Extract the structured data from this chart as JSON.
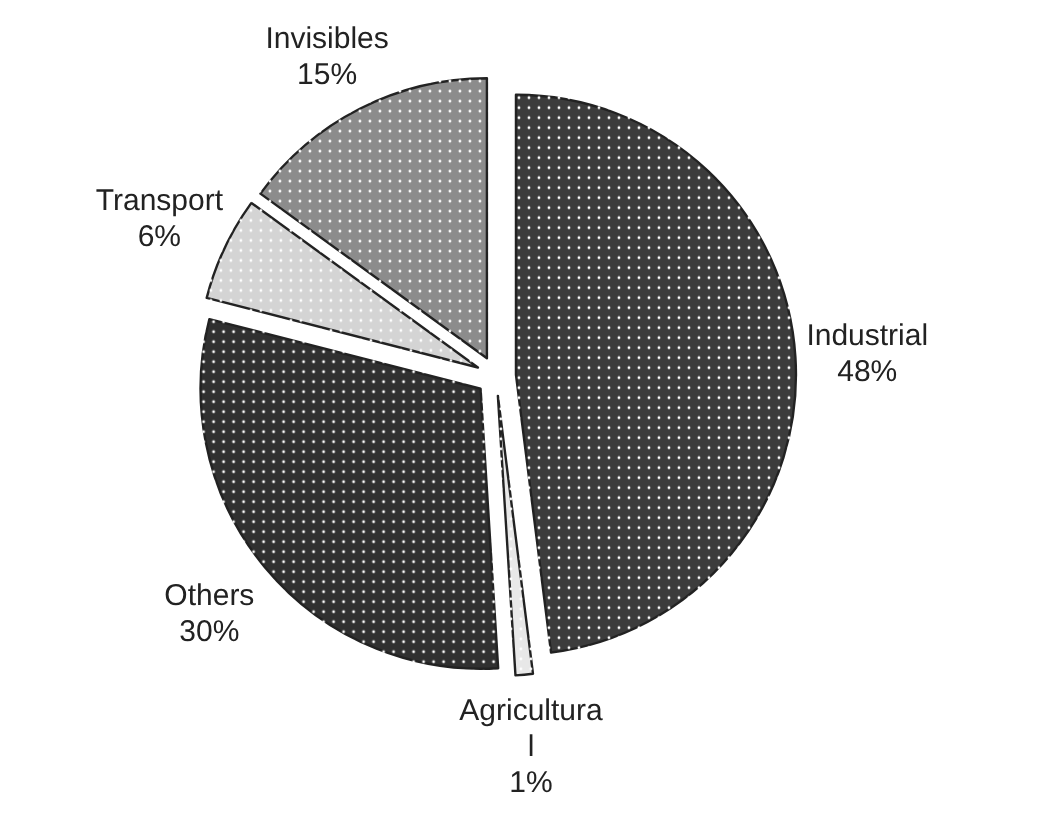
{
  "chart_data": {
    "type": "pie",
    "categories": [
      "Industrial",
      "Agricultural",
      "Others",
      "Transport",
      "Invisibles"
    ],
    "values": [
      48,
      1,
      30,
      6,
      15
    ],
    "colors": [
      "#3c3c3c",
      "#e8e8e8",
      "#303030",
      "#d4d4d4",
      "#8c8c8c"
    ],
    "value_labels": [
      "48%",
      "1%",
      "30%",
      "6%",
      "15%"
    ]
  }
}
